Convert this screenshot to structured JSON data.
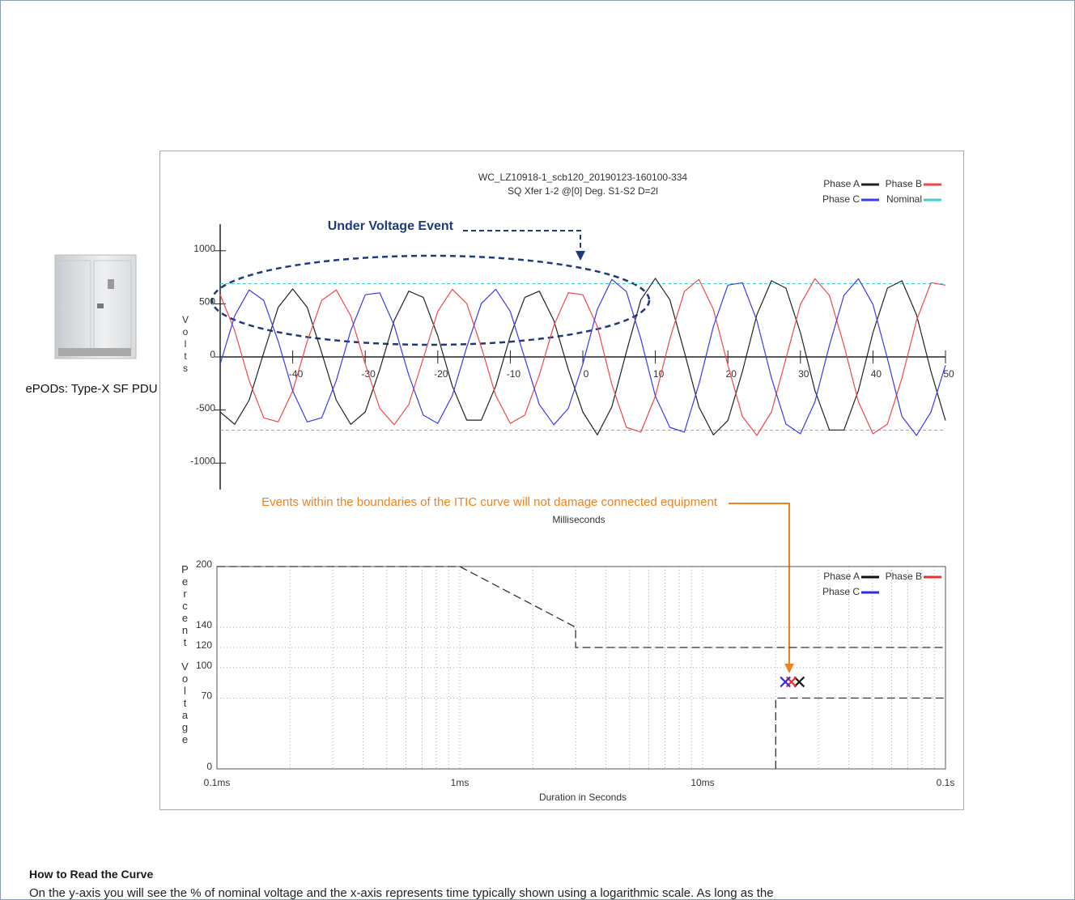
{
  "chart_data": [
    {
      "type": "line",
      "title": "WC_LZ10918-1_scb120_20190123-160100-334",
      "subtitle": "SQ Xfer 1-2 @[0] Deg. S1-S2 D=2l",
      "x_label": "Milliseconds",
      "y_label": "Volts",
      "x": [
        -50,
        -48,
        -46,
        -44,
        -42,
        -40,
        -38,
        -36,
        -34,
        -32,
        -30,
        -28,
        -26,
        -24,
        -22,
        -20,
        -18,
        -16,
        -14,
        -12,
        -10,
        -8,
        -6,
        -4,
        -2,
        0,
        2,
        4,
        6,
        8,
        10,
        12,
        14,
        16,
        18,
        20,
        22,
        24,
        26,
        28,
        30,
        32,
        34,
        36,
        38,
        40,
        42,
        44,
        46,
        48,
        50
      ],
      "series": [
        {
          "name": "Phase A",
          "color": "#222222",
          "values": [
            -518,
            -635,
            -408,
            40,
            467,
            640,
            467,
            40,
            -408,
            -635,
            -518,
            -120,
            343,
            620,
            561,
            198,
            -273,
            -595,
            -595,
            -273,
            198,
            561,
            620,
            343,
            -120,
            -518,
            -734,
            -471,
            47,
            539,
            740,
            539,
            47,
            -471,
            -734,
            -599,
            -138,
            397,
            717,
            648,
            229,
            -315,
            -688,
            -688,
            -315,
            229,
            648,
            717,
            397,
            -138,
            -599
          ]
        },
        {
          "name": "Phase B",
          "color": "#f04848",
          "values": [
            585,
            248,
            -223,
            -573,
            -612,
            -320,
            146,
            533,
            631,
            387,
            -67,
            -484,
            -639,
            -448,
            -13,
            428,
            637,
            502,
            93,
            -365,
            -626,
            -548,
            -172,
            296,
            605,
            585,
            287,
            -258,
            -663,
            -708,
            -370,
            169,
            616,
            730,
            448,
            -78,
            -560,
            -739,
            -518,
            -16,
            495,
            737,
            580,
            108,
            -423,
            -724,
            -633,
            -199,
            343,
            699,
            676
          ]
        },
        {
          "name": "Phase C",
          "color": "#3a3aee",
          "values": [
            -67,
            387,
            631,
            533,
            146,
            -320,
            -612,
            -573,
            -223,
            248,
            585,
            604,
            296,
            -172,
            -548,
            -626,
            -365,
            93,
            502,
            637,
            428,
            -13,
            -448,
            -639,
            -484,
            -67,
            448,
            730,
            616,
            169,
            -370,
            -663,
            -708,
            -258,
            287,
            676,
            699,
            343,
            -199,
            -633,
            -724,
            -423,
            108,
            580,
            737,
            495,
            -16,
            -560,
            -739,
            -518,
            -78
          ]
        }
      ],
      "reference": {
        "name": "Nominal",
        "color": "#40d0d0",
        "values": [
          690,
          -690
        ]
      },
      "xlim": [
        -50,
        50
      ],
      "xticks": [
        -40,
        -30,
        -20,
        -10,
        0,
        10,
        20,
        30,
        40,
        50
      ],
      "ylim": [
        -1250,
        1250
      ],
      "yticks": [
        -1000,
        -500,
        0,
        500,
        1000
      ]
    },
    {
      "type": "scatter",
      "x_label": "Duration in Seconds",
      "y_label": "Percent Voltage",
      "log_x": true,
      "grid": true,
      "series": [
        {
          "name": "Phase A",
          "color": "#111111",
          "x": [
            0.025
          ],
          "values": [
            86
          ]
        },
        {
          "name": "Phase B",
          "color": "#e83030",
          "x": [
            0.0232
          ],
          "values": [
            86
          ]
        },
        {
          "name": "Phase C",
          "color": "#2a2ae8",
          "x": [
            0.0219
          ],
          "values": [
            86
          ]
        }
      ],
      "curves": [
        {
          "color": "#333333",
          "x": [
            0.0001,
            0.001,
            0.003,
            0.003,
            0.1
          ],
          "values": [
            200,
            200,
            140,
            120,
            120
          ]
        },
        {
          "color": "#333333",
          "x": [
            0.02,
            0.02,
            0.1
          ],
          "values": [
            0,
            70,
            70
          ]
        }
      ],
      "xlim": [
        0.0001,
        0.1
      ],
      "xticks": [
        {
          "value": 0.0001,
          "label": "0.1ms"
        },
        {
          "value": 0.001,
          "label": "1ms"
        },
        {
          "value": 0.01,
          "label": "10ms"
        },
        {
          "value": 0.1,
          "label": "0.1s"
        }
      ],
      "xgrid_minor": [
        0.0002,
        0.0003,
        0.0004,
        0.0005,
        0.0006,
        0.0007,
        0.0008,
        0.0009,
        0.002,
        0.003,
        0.004,
        0.005,
        0.006,
        0.007,
        0.008,
        0.009,
        0.02,
        0.03,
        0.04,
        0.05,
        0.06,
        0.07,
        0.08,
        0.09
      ],
      "ylim": [
        0,
        200
      ],
      "yticks": [
        0,
        70,
        100,
        120,
        140,
        200
      ]
    }
  ],
  "annotations": {
    "under_voltage": "Under Voltage Event",
    "itic_note": "Events within the boundaries of the ITIC curve will not damage connected equipment"
  },
  "device_label": "ePODs: Type-X SF PDU",
  "section": {
    "heading": "How to Read the Curve",
    "body": "On the y-axis you will see the % of nominal voltage and the x-axis represents time typically shown using a logarithmic scale. As long as the"
  }
}
